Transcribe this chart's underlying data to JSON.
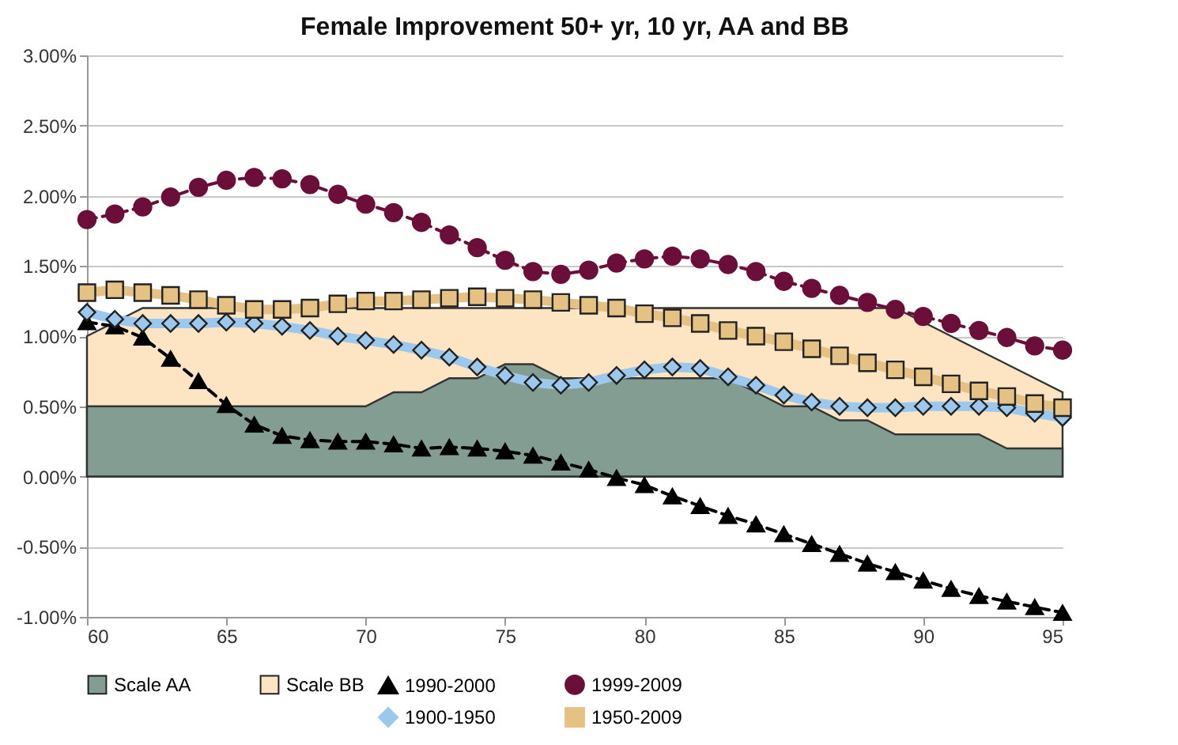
{
  "chart_data": {
    "type": "line",
    "title": "Female Improvement 50+ yr, 10 yr, AA and BB",
    "x": [
      60,
      61,
      62,
      63,
      64,
      65,
      66,
      67,
      68,
      69,
      70,
      71,
      72,
      73,
      74,
      75,
      76,
      77,
      78,
      79,
      80,
      81,
      82,
      83,
      84,
      85,
      86,
      87,
      88,
      89,
      90,
      91,
      92,
      93,
      94,
      95
    ],
    "series": [
      {
        "name": "Scale AA",
        "type": "area",
        "color": "#839d93",
        "values": [
          0.5,
          0.5,
          0.5,
          0.5,
          0.5,
          0.5,
          0.5,
          0.5,
          0.5,
          0.5,
          0.5,
          0.6,
          0.6,
          0.7,
          0.7,
          0.8,
          0.8,
          0.7,
          0.7,
          0.7,
          0.7,
          0.7,
          0.7,
          0.7,
          0.6,
          0.5,
          0.5,
          0.4,
          0.4,
          0.3,
          0.3,
          0.3,
          0.3,
          0.2,
          0.2,
          0.2
        ]
      },
      {
        "name": "Scale BB",
        "type": "area",
        "color": "#fde4c2",
        "values": [
          1.0,
          1.1,
          1.2,
          1.2,
          1.2,
          1.2,
          1.2,
          1.2,
          1.2,
          1.2,
          1.2,
          1.2,
          1.2,
          1.2,
          1.2,
          1.2,
          1.2,
          1.2,
          1.2,
          1.2,
          1.2,
          1.2,
          1.2,
          1.2,
          1.2,
          1.2,
          1.2,
          1.2,
          1.2,
          1.2,
          1.1,
          1.0,
          0.9,
          0.8,
          0.7,
          0.6
        ]
      },
      {
        "name": "1990-2000",
        "color": "#000000",
        "marker": "triangle",
        "line_style": "dashed",
        "values": [
          1.1,
          1.07,
          0.99,
          0.84,
          0.68,
          0.51,
          0.37,
          0.29,
          0.26,
          0.25,
          0.25,
          0.23,
          0.2,
          0.21,
          0.2,
          0.18,
          0.15,
          0.1,
          0.05,
          -0.01,
          -0.06,
          -0.14,
          -0.21,
          -0.28,
          -0.34,
          -0.41,
          -0.48,
          -0.55,
          -0.62,
          -0.68,
          -0.74,
          -0.8,
          -0.85,
          -0.89,
          -0.93,
          -0.97
        ]
      },
      {
        "name": "1999-2009",
        "color": "#6b0f3a",
        "marker": "circle",
        "line_style": "dashed",
        "values": [
          1.83,
          1.87,
          1.92,
          1.99,
          2.06,
          2.11,
          2.13,
          2.12,
          2.08,
          2.01,
          1.94,
          1.88,
          1.81,
          1.72,
          1.63,
          1.54,
          1.46,
          1.44,
          1.47,
          1.52,
          1.55,
          1.57,
          1.55,
          1.51,
          1.46,
          1.39,
          1.34,
          1.29,
          1.24,
          1.19,
          1.14,
          1.09,
          1.04,
          0.99,
          0.93,
          0.9
        ]
      },
      {
        "name": "1900-1950",
        "color": "#9cc8ee",
        "marker": "diamond",
        "line_style": "solid",
        "values": [
          1.17,
          1.12,
          1.09,
          1.09,
          1.09,
          1.1,
          1.09,
          1.07,
          1.04,
          1.0,
          0.97,
          0.94,
          0.9,
          0.85,
          0.78,
          0.72,
          0.67,
          0.65,
          0.67,
          0.72,
          0.76,
          0.78,
          0.77,
          0.71,
          0.65,
          0.58,
          0.53,
          0.5,
          0.49,
          0.49,
          0.5,
          0.5,
          0.5,
          0.49,
          0.45,
          0.42
        ]
      },
      {
        "name": "1950-2009",
        "color": "#e6c184",
        "marker": "square",
        "line_style": "solid",
        "values": [
          1.31,
          1.33,
          1.31,
          1.29,
          1.26,
          1.22,
          1.19,
          1.19,
          1.2,
          1.23,
          1.25,
          1.25,
          1.26,
          1.27,
          1.28,
          1.27,
          1.26,
          1.24,
          1.22,
          1.2,
          1.16,
          1.13,
          1.09,
          1.04,
          1.0,
          0.96,
          0.91,
          0.86,
          0.81,
          0.76,
          0.71,
          0.66,
          0.61,
          0.57,
          0.52,
          0.49
        ]
      }
    ],
    "xlim": [
      60,
      95
    ],
    "xticks": [
      60,
      65,
      70,
      75,
      80,
      85,
      90,
      95
    ],
    "ylim": [
      -1,
      3
    ],
    "yticks": [
      {
        "value": -1,
        "label": "-1.00%"
      },
      {
        "value": -0.5,
        "label": "-0.50%"
      },
      {
        "value": 0,
        "label": "0.00%"
      },
      {
        "value": 0.5,
        "label": "0.50%"
      },
      {
        "value": 1,
        "label": "1.00%"
      },
      {
        "value": 1.5,
        "label": "1.50%"
      },
      {
        "value": 2,
        "label": "2.00%"
      },
      {
        "value": 2.5,
        "label": "2.50%"
      },
      {
        "value": 3,
        "label": "3.00%"
      }
    ],
    "grid": "y",
    "legend": "bottom"
  }
}
